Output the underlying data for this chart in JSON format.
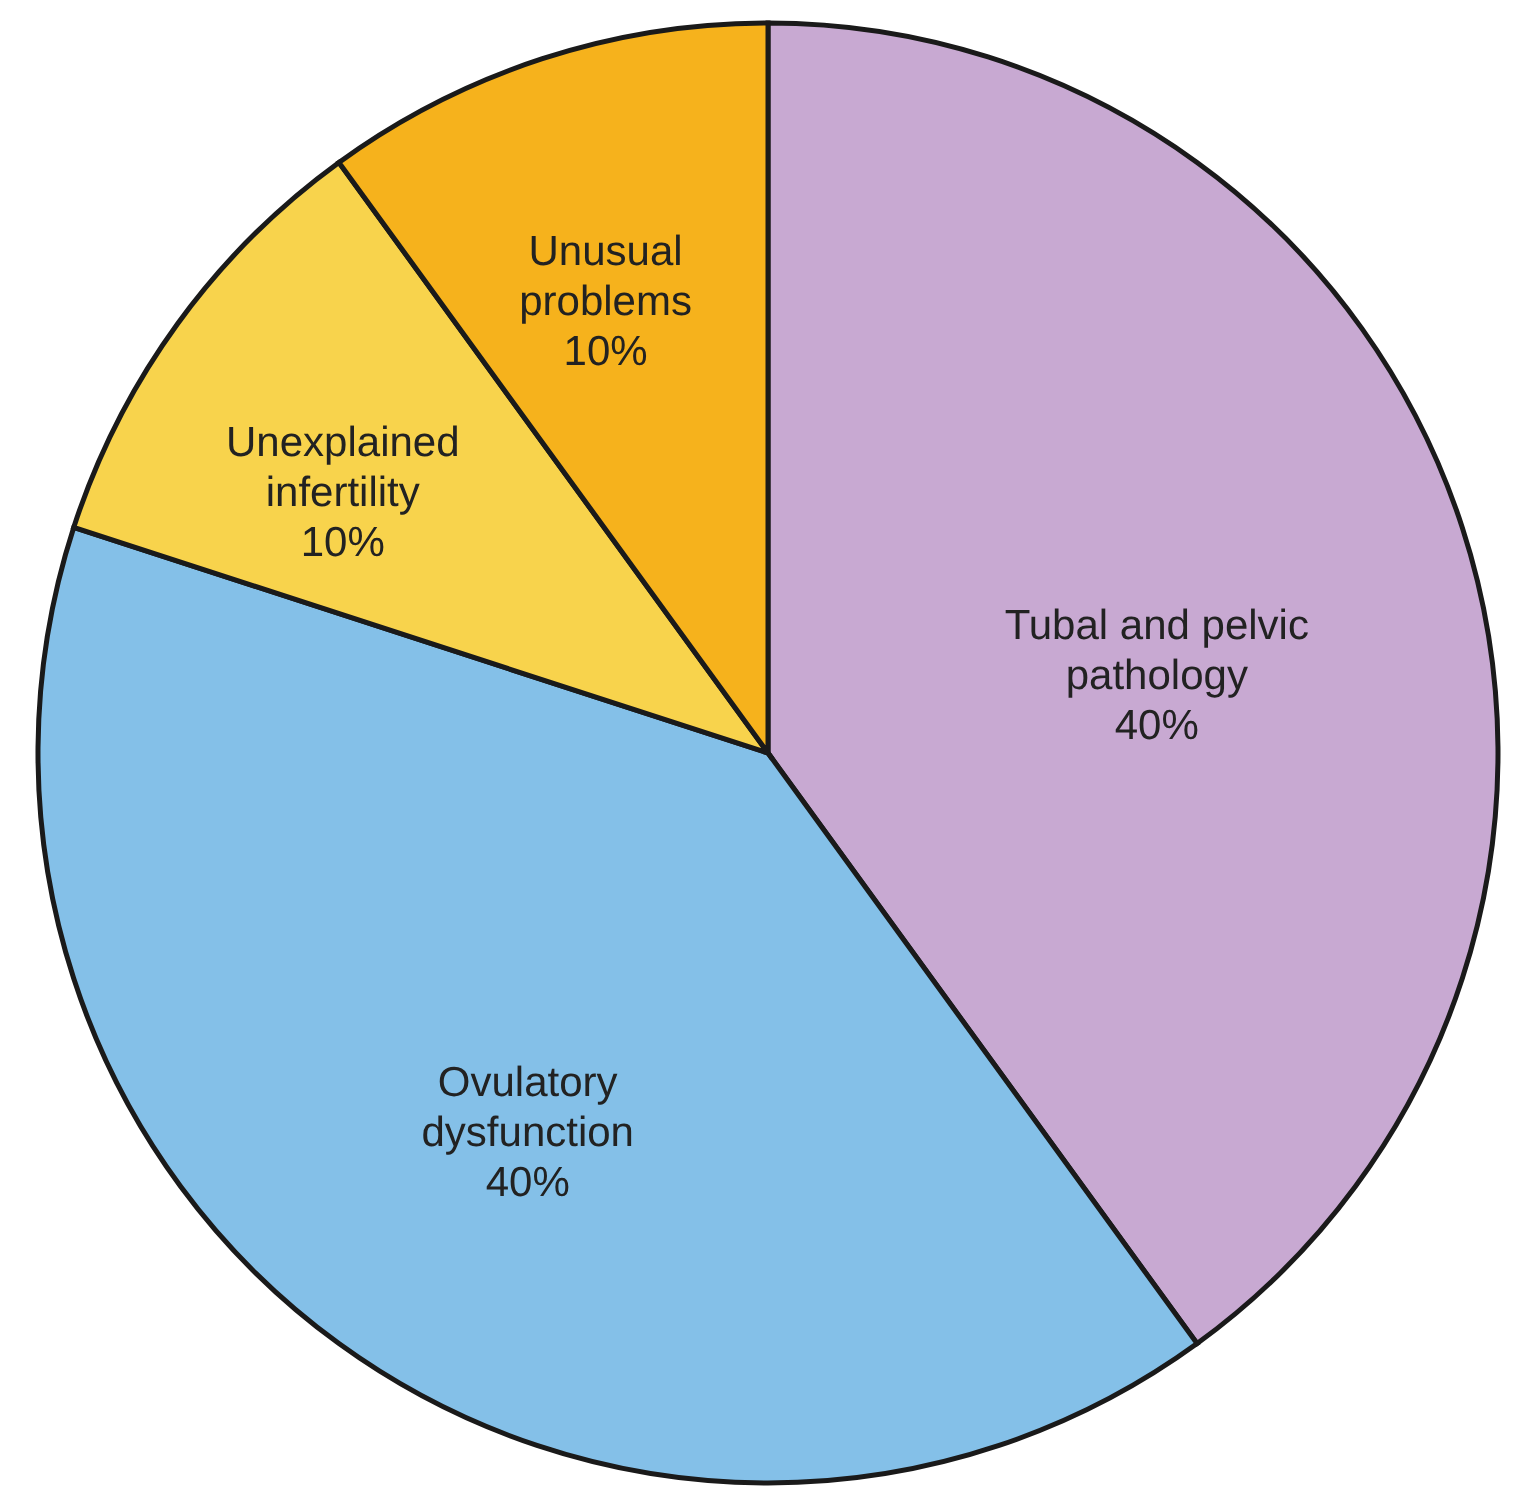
{
  "chart_data": {
    "type": "pie",
    "categories": [
      "Tubal and pelvic pathology",
      "Ovulatory dysfunction",
      "Unexplained infertility",
      "Unusual problems"
    ],
    "values": [
      40,
      40,
      10,
      10
    ],
    "colors": [
      "#c8a9d2",
      "#84c0e8",
      "#f8d34c",
      "#f6b21c"
    ],
    "value_labels": [
      "40%",
      "40%",
      "10%",
      "10%"
    ]
  }
}
